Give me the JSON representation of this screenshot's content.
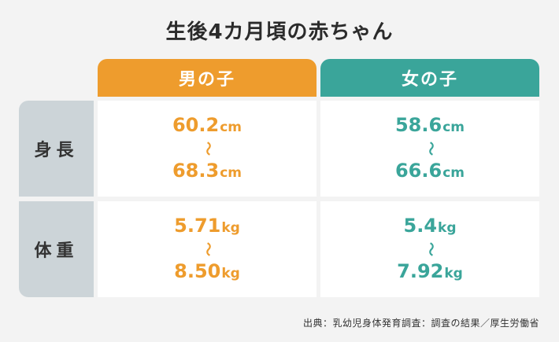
{
  "title": "生後4カ月頃の赤ちゃん",
  "columns": {
    "boy": "男の子",
    "girl": "女の子"
  },
  "rows": {
    "height": {
      "label": "身長",
      "boy": {
        "min": "60.2",
        "max": "68.3",
        "unit": "cm"
      },
      "girl": {
        "min": "58.6",
        "max": "66.6",
        "unit": "cm"
      }
    },
    "weight": {
      "label": "体重",
      "boy": {
        "min": "5.71",
        "max": "8.50",
        "unit": "kg"
      },
      "girl": {
        "min": "5.4",
        "max": "7.92",
        "unit": "kg"
      }
    }
  },
  "range_mark": "〜",
  "source": "出典：乳幼児身体発育調査：調査の結果／厚生労働省",
  "colors": {
    "boy": "#ee9c2d",
    "girl": "#3aa59a",
    "row_label_bg": "#ccd4d8",
    "background": "#f3f3f3"
  }
}
